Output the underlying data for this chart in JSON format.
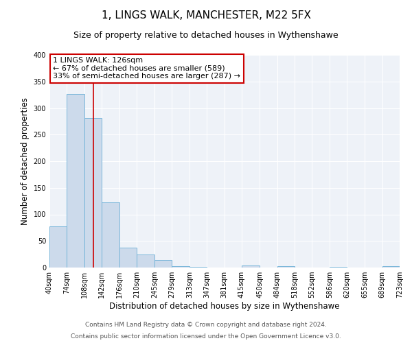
{
  "title": "1, LINGS WALK, MANCHESTER, M22 5FX",
  "subtitle": "Size of property relative to detached houses in Wythenshawe",
  "xlabel": "Distribution of detached houses by size in Wythenshawe",
  "ylabel": "Number of detached properties",
  "footnote1": "Contains HM Land Registry data © Crown copyright and database right 2024.",
  "footnote2": "Contains public sector information licensed under the Open Government Licence v3.0.",
  "bin_edges": [
    40,
    74,
    108,
    142,
    176,
    210,
    245,
    279,
    313,
    347,
    381,
    415,
    450,
    484,
    518,
    552,
    586,
    620,
    655,
    689,
    723
  ],
  "bin_labels": [
    "40sqm",
    "74sqm",
    "108sqm",
    "142sqm",
    "176sqm",
    "210sqm",
    "245sqm",
    "279sqm",
    "313sqm",
    "347sqm",
    "381sqm",
    "415sqm",
    "450sqm",
    "484sqm",
    "518sqm",
    "552sqm",
    "586sqm",
    "620sqm",
    "655sqm",
    "689sqm",
    "723sqm"
  ],
  "counts": [
    77,
    327,
    281,
    122,
    37,
    25,
    14,
    3,
    1,
    0,
    0,
    4,
    0,
    2,
    0,
    0,
    1,
    0,
    0,
    2
  ],
  "bar_color": "#ccdaeb",
  "bar_edge_color": "#6aafd6",
  "property_line_x": 126,
  "annotation_box_text": "1 LINGS WALK: 126sqm\n← 67% of detached houses are smaller (589)\n33% of semi-detached houses are larger (287) →",
  "red_line_color": "#cc0000",
  "annotation_box_edge_color": "#cc0000",
  "ylim": [
    0,
    400
  ],
  "yticks": [
    0,
    50,
    100,
    150,
    200,
    250,
    300,
    350,
    400
  ],
  "bg_color": "#eef2f8",
  "grid_color": "#ffffff",
  "title_fontsize": 11,
  "subtitle_fontsize": 9,
  "axis_label_fontsize": 8.5,
  "tick_fontsize": 7,
  "annotation_fontsize": 8,
  "footnote_fontsize": 6.5
}
